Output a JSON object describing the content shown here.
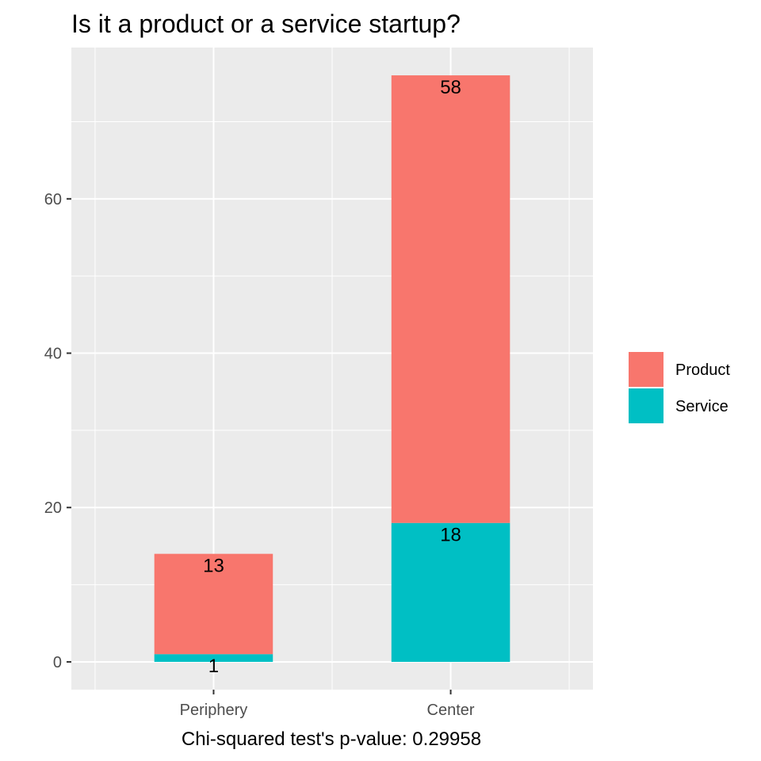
{
  "chart_data": {
    "type": "bar",
    "stacked": true,
    "title": "Is it a product or a service startup?",
    "xlabel": "Chi-squared test's p-value: 0.29958",
    "ylabel": "",
    "categories": [
      "Periphery",
      "Center"
    ],
    "series": [
      {
        "name": "Product",
        "values": [
          13,
          58
        ],
        "color": "#F8766D"
      },
      {
        "name": "Service",
        "values": [
          1,
          18
        ],
        "color": "#00BFC4"
      }
    ],
    "ylim": [
      -3.6,
      79.6
    ],
    "yticks": [
      0,
      20,
      40,
      60
    ],
    "grid": true,
    "panel_background": "#EBEBEB",
    "legend": {
      "position": "right",
      "order": [
        "Product",
        "Service"
      ]
    }
  }
}
